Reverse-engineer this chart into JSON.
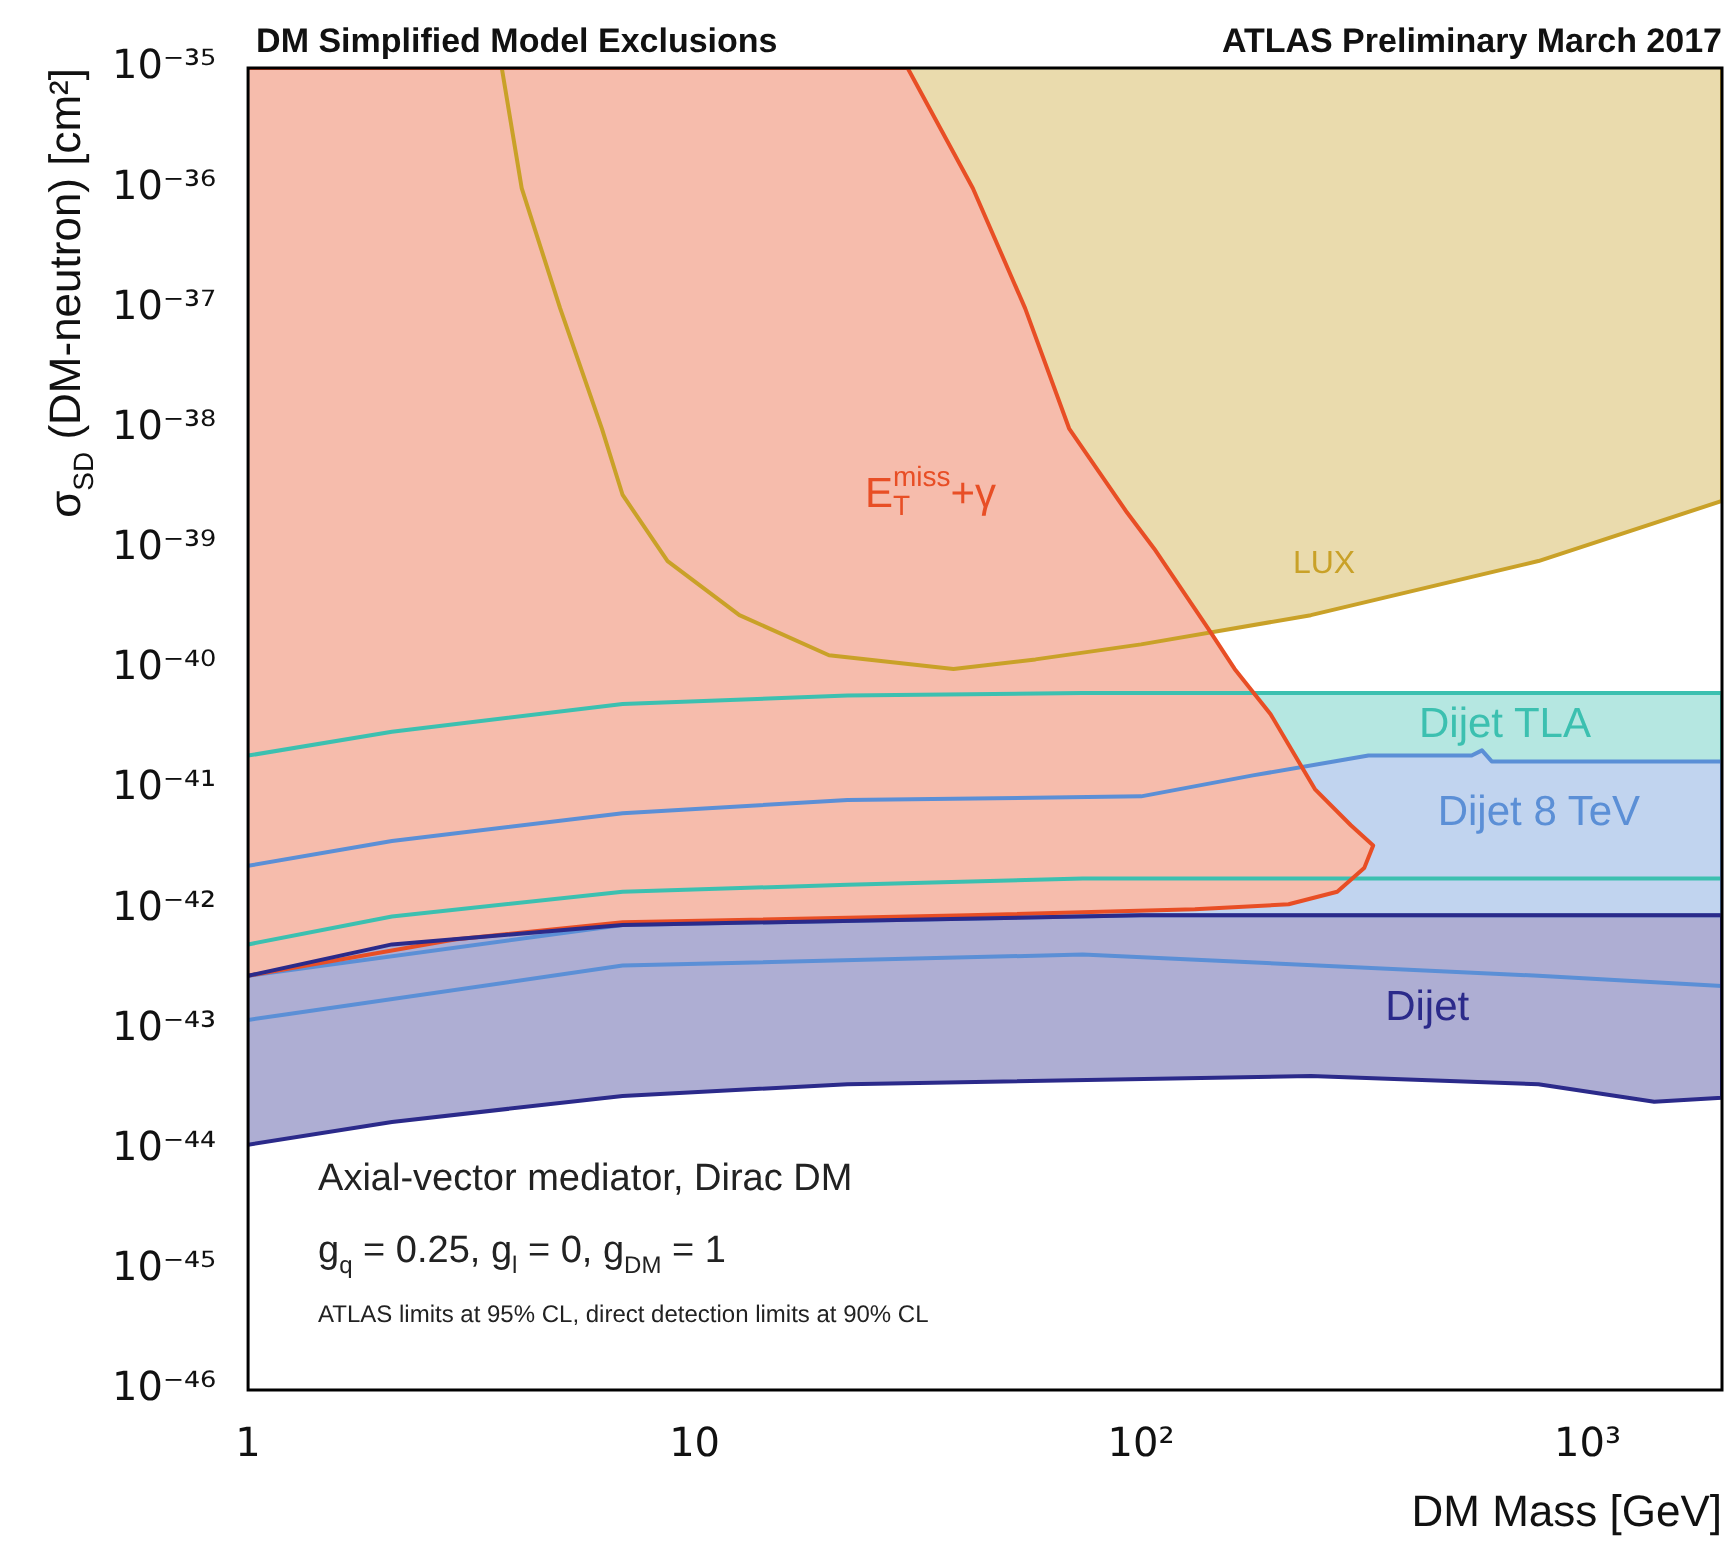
{
  "chart_data": {
    "type": "area",
    "title": "DM Simplified Model Exclusions",
    "subtitle": "ATLAS Preliminary March 2017",
    "xlabel": "DM Mass [GeV]",
    "ylabel": "σ$_{SD}$ (DM-neutron) [cm²]",
    "log": "xy",
    "grid": false,
    "legend": false,
    "xlim": [
      1,
      2000
    ],
    "xticks": [
      1,
      10,
      {
        "value": 100,
        "label": "10²"
      },
      {
        "value": 1000,
        "label": "10³"
      }
    ],
    "ylim": [
      1e-46,
      1e-35
    ],
    "yticks": [
      {
        "value": 1e-46,
        "label": "10⁻⁴⁶"
      },
      {
        "value": 1e-45,
        "label": "10⁻⁴⁵"
      },
      {
        "value": 1e-44,
        "label": "10⁻⁴⁴"
      },
      {
        "value": 1e-43,
        "label": "10⁻⁴³"
      },
      {
        "value": 1e-42,
        "label": "10⁻⁴²"
      },
      {
        "value": 1e-41,
        "label": "10⁻⁴¹"
      },
      {
        "value": 1e-40,
        "label": "10⁻⁴⁰"
      },
      {
        "value": 1e-39,
        "label": "10⁻³⁹"
      },
      {
        "value": 1e-38,
        "label": "10⁻³⁸"
      },
      {
        "value": 1e-37,
        "label": "10⁻³⁷"
      },
      {
        "value": 1e-36,
        "label": "10⁻³⁶"
      },
      {
        "value": 1e-35,
        "label": "10⁻³⁵"
      }
    ],
    "series": [
      {
        "color": "#2b2a8a",
        "x": [
          1,
          2.1,
          6.9,
          100,
          2000,
          2000,
          1410,
          776,
          240,
          22,
          6.9,
          2.1,
          1
        ],
        "values": [
          2.8e-43,
          5.1e-43,
          7.4e-43,
          8.9e-43,
          8.9e-43,
          2.7e-44,
          2.5e-44,
          3.5e-44,
          4.1e-44,
          3.5e-44,
          2.8e-44,
          1.7e-44,
          1.1e-44
        ]
      },
      {
        "color": "#e84e25",
        "x": [
          1,
          30,
          42,
          55,
          69,
          93,
          107,
          141,
          162,
          195,
          245,
          295,
          331,
          316,
          275,
          214,
          132,
          41,
          6.9,
          2.9,
          1
        ],
        "values": [
          1e-35,
          1e-35,
          1e-36,
          1e-37,
          1e-38,
          2e-39,
          1e-39,
          2.2e-40,
          1e-40,
          4.2e-41,
          1e-41,
          5e-42,
          3.4e-42,
          2.2e-42,
          1.4e-42,
          1.1e-42,
          1e-42,
          8.9e-43,
          7.8e-43,
          5.6e-43,
          2.8e-43
        ]
      },
      {
        "color": "#5b8fd6",
        "x": [
          1,
          2.1,
          6.9,
          22,
          100,
          178,
          323,
          550,
          580,
          610,
          2000,
          2000,
          100,
          6.9,
          1
        ],
        "values": [
          2.3e-42,
          3.7e-42,
          6.3e-42,
          8.1e-42,
          8.7e-42,
          1.3e-41,
          1.9e-41,
          1.9e-41,
          2.1e-41,
          1.7e-41,
          1.7e-41,
          8.9e-43,
          8.9e-43,
          7.4e-43,
          2.8e-43
        ]
      },
      {
        "color": "#3cc0b0",
        "x": [
          1,
          2.1,
          6.9,
          22,
          74,
          2000,
          2000,
          74,
          22,
          6.9,
          2.1,
          1
        ],
        "values": [
          1.9e-41,
          3e-41,
          5.1e-41,
          6e-41,
          6.3e-41,
          6.3e-41,
          1.8e-42,
          1.8e-42,
          1.6e-42,
          1.4e-42,
          8.7e-43,
          5.1e-43
        ]
      },
      {
        "color": "#c9a128",
        "x": [
          3.7,
          4.1,
          5,
          6.2,
          6.9,
          8.7,
          12.6,
          20,
          38,
          58,
          100,
          240,
          776,
          2000,
          2000
        ],
        "values": [
          1e-35,
          1e-36,
          1e-37,
          1e-38,
          2.8e-39,
          7.9e-40,
          2.8e-40,
          1.3e-40,
          1e-40,
          1.2e-40,
          1.6e-40,
          2.8e-40,
          7.9e-40,
          2.5e-39,
          1e-35
        ]
      },
      {
        "type": "line",
        "color": "#5b8fd6",
        "x": [
          1,
          6.9,
          74,
          776,
          2000
        ],
        "values": [
          1.2e-43,
          3.4e-43,
          4.2e-43,
          2.8e-43,
          2.3e-43
        ]
      }
    ],
    "annotations": [
      "Dijet",
      "E$_{T}$$^{miss}$+γ",
      "Dijet 8 TeV",
      "Dijet TLA",
      "LUX",
      "Axial-vector mediator, Dirac DM",
      "g$_{q}$ = 0.25, g$_{l}$ = 0, g$_{DM}$ = 1",
      "ATLAS limits at 95% CL, direct detection limits at 90% CL"
    ]
  }
}
